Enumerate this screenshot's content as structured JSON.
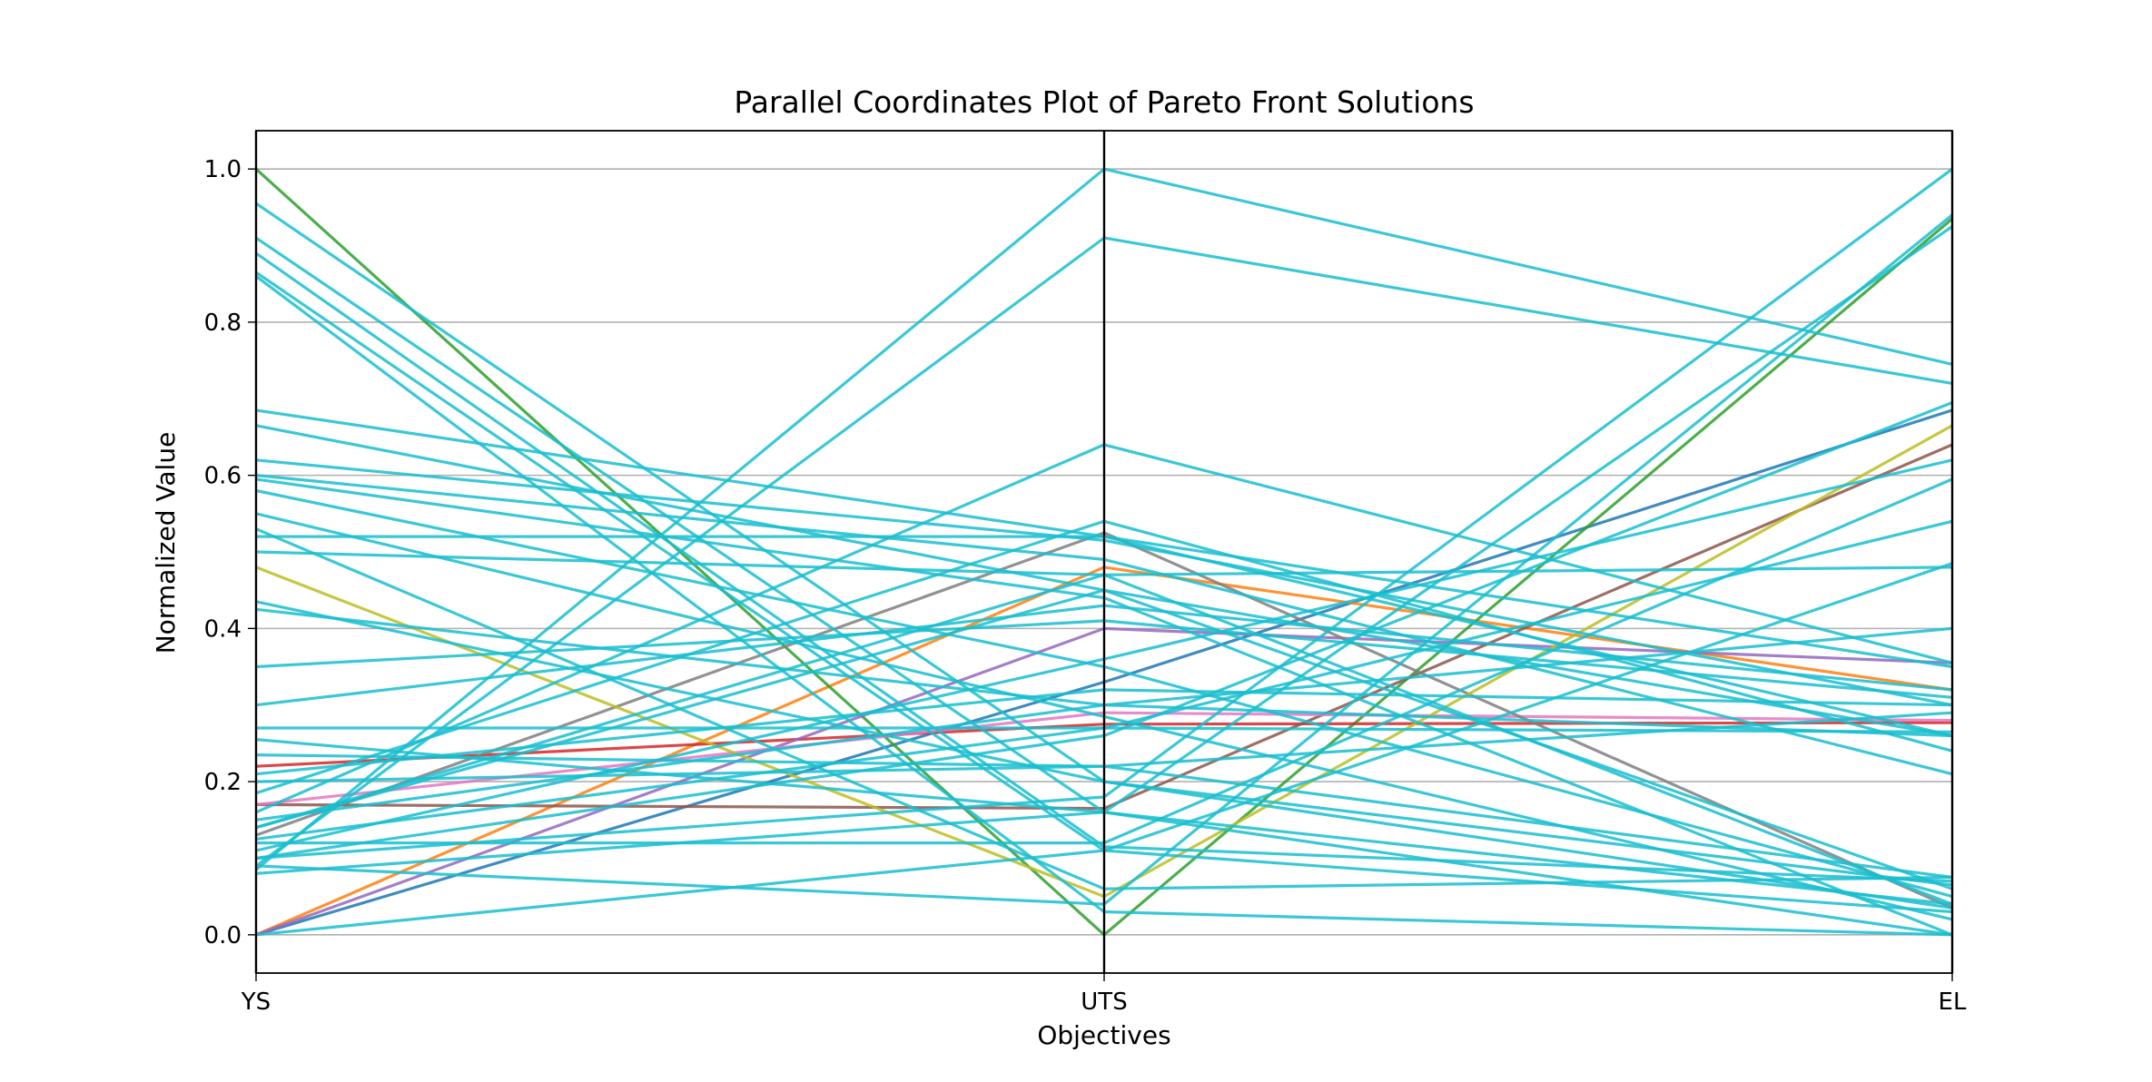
{
  "chart_data": {
    "type": "parallel_coordinates",
    "title": "Parallel Coordinates Plot of Pareto Front Solutions",
    "xlabel": "Objectives",
    "ylabel": "Normalized Value",
    "axes": [
      "YS",
      "UTS",
      "EL"
    ],
    "ylim": [
      -0.05,
      1.05
    ],
    "yticks": [
      "0.0",
      "0.2",
      "0.4",
      "0.6",
      "0.8",
      "1.0"
    ],
    "grid": true,
    "series": [
      {
        "color": "#1f77b4",
        "values": [
          0.0,
          0.33,
          0.685
        ]
      },
      {
        "color": "#ff7f0e",
        "values": [
          0.0,
          0.48,
          0.32
        ]
      },
      {
        "color": "#2ca02c",
        "values": [
          1.0,
          0.0,
          0.935
        ]
      },
      {
        "color": "#d62728",
        "values": [
          0.22,
          0.275,
          0.277
        ]
      },
      {
        "color": "#9467bd",
        "values": [
          0.0,
          0.4,
          0.355
        ]
      },
      {
        "color": "#8c564b",
        "values": [
          0.17,
          0.165,
          0.64
        ]
      },
      {
        "color": "#e377c2",
        "values": [
          0.17,
          0.29,
          0.28
        ]
      },
      {
        "color": "#7f7f7f",
        "values": [
          0.13,
          0.525,
          0.035
        ]
      },
      {
        "color": "#bcbd22",
        "values": [
          0.48,
          0.05,
          0.665
        ]
      },
      {
        "color": "#17becf",
        "values": [
          0.955,
          0.2,
          0.065
        ]
      },
      {
        "color": "#17becf",
        "values": [
          0.91,
          0.16,
          0.04
        ]
      },
      {
        "color": "#17becf",
        "values": [
          0.89,
          0.115,
          0.07
        ]
      },
      {
        "color": "#17becf",
        "values": [
          0.865,
          0.11,
          0.03
        ]
      },
      {
        "color": "#17becf",
        "values": [
          0.86,
          0.03,
          0.0
        ]
      },
      {
        "color": "#17becf",
        "values": [
          0.685,
          0.52,
          0.35
        ]
      },
      {
        "color": "#17becf",
        "values": [
          0.665,
          0.45,
          0.26
        ]
      },
      {
        "color": "#17becf",
        "values": [
          0.62,
          0.515,
          0.3
        ]
      },
      {
        "color": "#17becf",
        "values": [
          0.6,
          0.49,
          0.21
        ]
      },
      {
        "color": "#17becf",
        "values": [
          0.595,
          0.44,
          0.0
        ]
      },
      {
        "color": "#17becf",
        "values": [
          0.58,
          0.35,
          0.05
        ]
      },
      {
        "color": "#17becf",
        "values": [
          0.55,
          0.285,
          0.02
        ]
      },
      {
        "color": "#17becf",
        "values": [
          0.53,
          0.06,
          0.075
        ]
      },
      {
        "color": "#17becf",
        "values": [
          0.52,
          0.52,
          0.26
        ]
      },
      {
        "color": "#17becf",
        "values": [
          0.5,
          0.47,
          0.04
        ]
      },
      {
        "color": "#17becf",
        "values": [
          0.435,
          0.2,
          0.035
        ]
      },
      {
        "color": "#17becf",
        "values": [
          0.425,
          0.3,
          0.26
        ]
      },
      {
        "color": "#17becf",
        "values": [
          0.35,
          0.41,
          0.31
        ]
      },
      {
        "color": "#17becf",
        "values": [
          0.3,
          0.43,
          0.32
        ]
      },
      {
        "color": "#17becf",
        "values": [
          0.27,
          0.27,
          0.265
        ]
      },
      {
        "color": "#17becf",
        "values": [
          0.255,
          0.16,
          0.0
        ]
      },
      {
        "color": "#17becf",
        "values": [
          0.235,
          0.22,
          0.29
        ]
      },
      {
        "color": "#17becf",
        "values": [
          0.21,
          0.32,
          0.3
        ]
      },
      {
        "color": "#17becf",
        "values": [
          0.185,
          0.54,
          0.24
        ]
      },
      {
        "color": "#17becf",
        "values": [
          0.16,
          0.64,
          0.355
        ]
      },
      {
        "color": "#17becf",
        "values": [
          0.15,
          0.3,
          0.4
        ]
      },
      {
        "color": "#17becf",
        "values": [
          0.14,
          0.47,
          0.48
        ]
      },
      {
        "color": "#17becf",
        "values": [
          0.125,
          0.27,
          0.54
        ]
      },
      {
        "color": "#17becf",
        "values": [
          0.12,
          0.12,
          0.595
        ]
      },
      {
        "color": "#17becf",
        "values": [
          0.11,
          0.36,
          0.62
        ]
      },
      {
        "color": "#17becf",
        "values": [
          0.1,
          0.26,
          0.695
        ]
      },
      {
        "color": "#17becf",
        "values": [
          0.09,
          0.91,
          0.72
        ]
      },
      {
        "color": "#17becf",
        "values": [
          0.085,
          1.0,
          0.745
        ]
      },
      {
        "color": "#17becf",
        "values": [
          0.08,
          0.16,
          0.925
        ]
      },
      {
        "color": "#17becf",
        "values": [
          0.09,
          0.04,
          0.94
        ]
      },
      {
        "color": "#17becf",
        "values": [
          0.1,
          0.18,
          1.0
        ]
      },
      {
        "color": "#17becf",
        "values": [
          0.0,
          0.11,
          0.485
        ]
      },
      {
        "color": "#17becf",
        "values": [
          0.2,
          0.22,
          0.075
        ]
      },
      {
        "color": "#17becf",
        "values": [
          0.14,
          0.45,
          0.06
        ]
      }
    ]
  }
}
